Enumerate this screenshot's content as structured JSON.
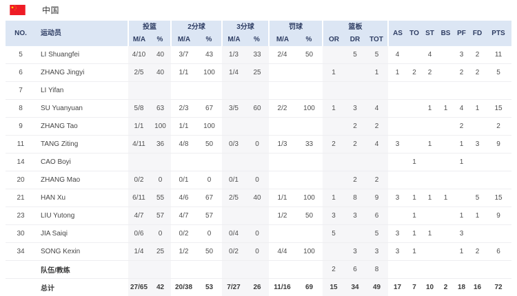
{
  "team_header": {
    "name": "中国",
    "flag": "china-flag"
  },
  "colors": {
    "header_bg": "#dce6f4",
    "header_text": "#2e3d63",
    "band_bg": "#f6f6f8",
    "body_text": "#4e4e4e",
    "divider": "#eeeef1",
    "flag_red": "#ee1c25",
    "flag_yellow": "#ffde00"
  },
  "table": {
    "headers": {
      "no": "NO.",
      "player": "运动员",
      "fg": "投篮",
      "p2": "2分球",
      "p3": "3分球",
      "ft": "罚球",
      "reb": "篮板",
      "ma": "M/A",
      "pct": "%",
      "or": "OR",
      "dr": "DR",
      "tot": "TOT",
      "as": "AS",
      "to": "TO",
      "st": "ST",
      "bs": "BS",
      "pf": "PF",
      "fd": "FD",
      "pts": "PTS"
    },
    "col_keys": [
      "no",
      "player",
      "fg_ma",
      "fg_pct",
      "p2_ma",
      "p2_pct",
      "p3_ma",
      "p3_pct",
      "ft_ma",
      "ft_pct",
      "or",
      "dr",
      "tot",
      "as",
      "to",
      "st",
      "bs",
      "pf",
      "fd",
      "pts"
    ],
    "band_cols": [
      "fg_ma",
      "fg_pct",
      "p3_ma",
      "p3_pct",
      "or",
      "dr",
      "tot"
    ],
    "rows": [
      {
        "type": "player",
        "cells": [
          "5",
          "LI Shuangfei",
          "4/10",
          "40",
          "3/7",
          "43",
          "1/3",
          "33",
          "2/4",
          "50",
          "",
          "5",
          "5",
          "4",
          "",
          "4",
          "",
          "3",
          "2",
          "11"
        ]
      },
      {
        "type": "player",
        "cells": [
          "6",
          "ZHANG Jingyi",
          "2/5",
          "40",
          "1/1",
          "100",
          "1/4",
          "25",
          "",
          "",
          "1",
          "",
          "1",
          "1",
          "2",
          "2",
          "",
          "2",
          "2",
          "5"
        ]
      },
      {
        "type": "player",
        "cells": [
          "7",
          "LI Yifan",
          "",
          "",
          "",
          "",
          "",
          "",
          "",
          "",
          "",
          "",
          "",
          "",
          "",
          "",
          "",
          "",
          "",
          ""
        ]
      },
      {
        "type": "player",
        "cells": [
          "8",
          "SU Yuanyuan",
          "5/8",
          "63",
          "2/3",
          "67",
          "3/5",
          "60",
          "2/2",
          "100",
          "1",
          "3",
          "4",
          "",
          "",
          "1",
          "1",
          "4",
          "1",
          "15"
        ]
      },
      {
        "type": "player",
        "cells": [
          "9",
          "ZHANG Tao",
          "1/1",
          "100",
          "1/1",
          "100",
          "",
          "",
          "",
          "",
          "",
          "2",
          "2",
          "",
          "",
          "",
          "",
          "2",
          "",
          "2"
        ]
      },
      {
        "type": "player",
        "cells": [
          "11",
          "TANG Ziting",
          "4/11",
          "36",
          "4/8",
          "50",
          "0/3",
          "0",
          "1/3",
          "33",
          "2",
          "2",
          "4",
          "3",
          "",
          "1",
          "",
          "1",
          "3",
          "9"
        ]
      },
      {
        "type": "player",
        "cells": [
          "14",
          "CAO Boyi",
          "",
          "",
          "",
          "",
          "",
          "",
          "",
          "",
          "",
          "",
          "",
          "",
          "1",
          "",
          "",
          "1",
          "",
          ""
        ]
      },
      {
        "type": "player",
        "cells": [
          "20",
          "ZHANG Mao",
          "0/2",
          "0",
          "0/1",
          "0",
          "0/1",
          "0",
          "",
          "",
          "",
          "2",
          "2",
          "",
          "",
          "",
          "",
          "",
          "",
          ""
        ]
      },
      {
        "type": "player",
        "cells": [
          "21",
          "HAN Xu",
          "6/11",
          "55",
          "4/6",
          "67",
          "2/5",
          "40",
          "1/1",
          "100",
          "1",
          "8",
          "9",
          "3",
          "1",
          "1",
          "1",
          "",
          "5",
          "15"
        ]
      },
      {
        "type": "player",
        "cells": [
          "23",
          "LIU Yutong",
          "4/7",
          "57",
          "4/7",
          "57",
          "",
          "",
          "1/2",
          "50",
          "3",
          "3",
          "6",
          "",
          "1",
          "",
          "",
          "1",
          "1",
          "9"
        ]
      },
      {
        "type": "player",
        "cells": [
          "30",
          "JIA Saiqi",
          "0/6",
          "0",
          "0/2",
          "0",
          "0/4",
          "0",
          "",
          "",
          "5",
          "",
          "5",
          "3",
          "1",
          "1",
          "",
          "3",
          "",
          ""
        ]
      },
      {
        "type": "player",
        "cells": [
          "34",
          "SONG Kexin",
          "1/4",
          "25",
          "1/2",
          "50",
          "0/2",
          "0",
          "4/4",
          "100",
          "",
          "3",
          "3",
          "3",
          "1",
          "",
          "",
          "1",
          "2",
          "6"
        ]
      }
    ],
    "team_row": {
      "type": "team",
      "cells": [
        "",
        "队伍/教练",
        "",
        "",
        "",
        "",
        "",
        "",
        "",
        "",
        "2",
        "6",
        "8",
        "",
        "",
        "",
        "",
        "",
        "",
        ""
      ]
    },
    "total_row": {
      "type": "total",
      "cells": [
        "",
        "总计",
        "27/65",
        "42",
        "20/38",
        "53",
        "7/27",
        "26",
        "11/16",
        "69",
        "15",
        "34",
        "49",
        "17",
        "7",
        "10",
        "2",
        "18",
        "16",
        "72"
      ]
    }
  }
}
